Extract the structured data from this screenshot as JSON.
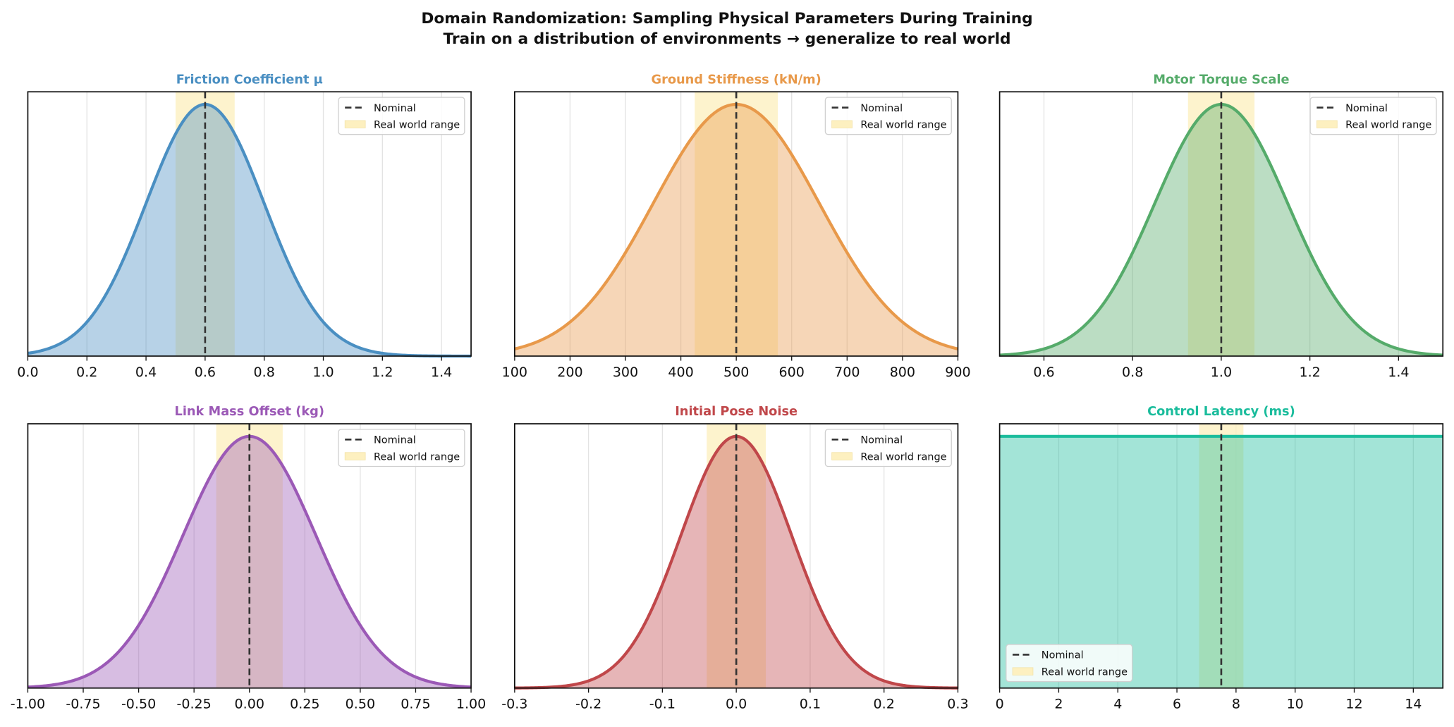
{
  "figure": {
    "title_line1": "Domain Randomization: Sampling Physical Parameters During Training",
    "title_line2": "Train on a distribution of environments → generalize to real world"
  },
  "legend": {
    "nominal": "Nominal",
    "real_range": "Real world range"
  },
  "colors": {
    "nominal_line": "#333333",
    "real_range_fill": "#fdf0c0",
    "grid": "#e3e3e3"
  },
  "chart_data": [
    {
      "type": "area",
      "title": "Friction Coefficient μ",
      "color": "#4a8fc2",
      "distribution": "normal",
      "mean": 0.6,
      "std": 0.2,
      "xlim": [
        0.0,
        1.5
      ],
      "xticks": [
        "0.0",
        "0.2",
        "0.4",
        "0.6",
        "0.8",
        "1.0",
        "1.2",
        "1.4"
      ],
      "nominal": 0.6,
      "real_range": [
        0.5,
        0.7
      ],
      "legend_position": "upper-right",
      "grid": "x"
    },
    {
      "type": "area",
      "title": "Ground Stiffness (kN/m)",
      "color": "#e8994a",
      "distribution": "normal",
      "mean": 500,
      "std": 150,
      "xlim": [
        100,
        900
      ],
      "xticks": [
        "100",
        "200",
        "300",
        "400",
        "500",
        "600",
        "700",
        "800",
        "900"
      ],
      "nominal": 500,
      "real_range": [
        425,
        575
      ],
      "legend_position": "upper-right",
      "grid": "x"
    },
    {
      "type": "area",
      "title": "Motor Torque Scale",
      "color": "#55ab6a",
      "distribution": "normal",
      "mean": 1.0,
      "std": 0.15,
      "xlim": [
        0.5,
        1.5
      ],
      "xticks": [
        "0.6",
        "0.8",
        "1.0",
        "1.2",
        "1.4"
      ],
      "nominal": 1.0,
      "real_range": [
        0.925,
        1.075
      ],
      "legend_position": "upper-right",
      "grid": "x"
    },
    {
      "type": "area",
      "title": "Link Mass Offset (kg)",
      "color": "#9b59b6",
      "distribution": "normal",
      "mean": 0.0,
      "std": 0.3,
      "xlim": [
        -1.0,
        1.0
      ],
      "xticks": [
        "-1.00",
        "-0.75",
        "-0.50",
        "-0.25",
        "0.00",
        "0.25",
        "0.50",
        "0.75",
        "1.00"
      ],
      "nominal": 0.0,
      "real_range": [
        -0.15,
        0.15
      ],
      "legend_position": "upper-right",
      "grid": "x"
    },
    {
      "type": "area",
      "title": "Initial Pose Noise",
      "color": "#c0474a",
      "distribution": "normal",
      "mean": 0.0,
      "std": 0.075,
      "xlim": [
        -0.3,
        0.3
      ],
      "xticks": [
        "-0.3",
        "-0.2",
        "-0.1",
        "0.0",
        "0.1",
        "0.2",
        "0.3"
      ],
      "nominal": 0.0,
      "real_range": [
        -0.04,
        0.04
      ],
      "legend_position": "upper-right",
      "grid": "x"
    },
    {
      "type": "area",
      "title": "Control Latency (ms)",
      "color": "#1abc9c",
      "distribution": "uniform",
      "low": 0,
      "high": 15,
      "xlim": [
        0,
        15
      ],
      "xticks": [
        "0",
        "2",
        "4",
        "6",
        "8",
        "10",
        "12",
        "14"
      ],
      "nominal": 7.5,
      "real_range": [
        6.75,
        8.25
      ],
      "legend_position": "lower-left",
      "grid": "x"
    }
  ]
}
